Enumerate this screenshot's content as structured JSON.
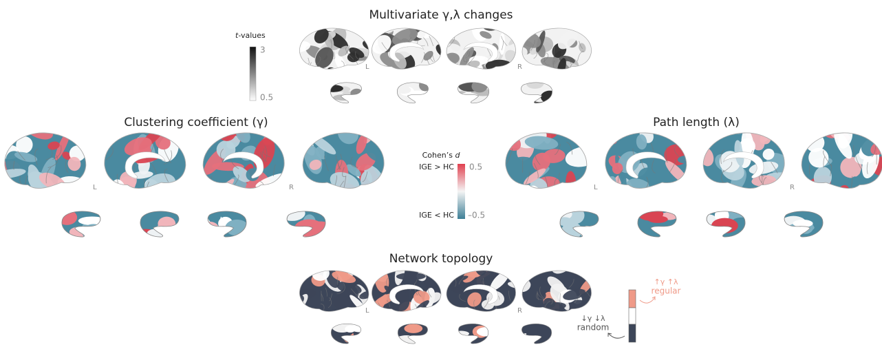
{
  "top": {
    "title": "Multivariate γ,λ changes",
    "hemisphere_labels": [
      "L",
      "R"
    ],
    "colorbar": {
      "title_italic": "t",
      "title_rest": "-values",
      "max": "3",
      "min": "0.5"
    }
  },
  "clustering": {
    "title": "Clustering coefficient (γ)",
    "hemisphere_labels": [
      "L",
      "R"
    ]
  },
  "path_length": {
    "title": "Path length (λ)",
    "hemisphere_labels": [
      "L",
      "R"
    ]
  },
  "cohens_d": {
    "title_rest": "Cohen’s ",
    "title_italic": "d",
    "upper_label": "IGE > HC",
    "lower_label": "IGE < HC",
    "max": "0.5",
    "min": "–0.5"
  },
  "network": {
    "title": "Network topology",
    "hemisphere_labels": [
      "L",
      "R"
    ],
    "regular": {
      "symbols": "↑γ ↑λ",
      "label": "regular"
    },
    "random": {
      "symbols": "↓γ ↓λ",
      "label": "random"
    }
  }
}
